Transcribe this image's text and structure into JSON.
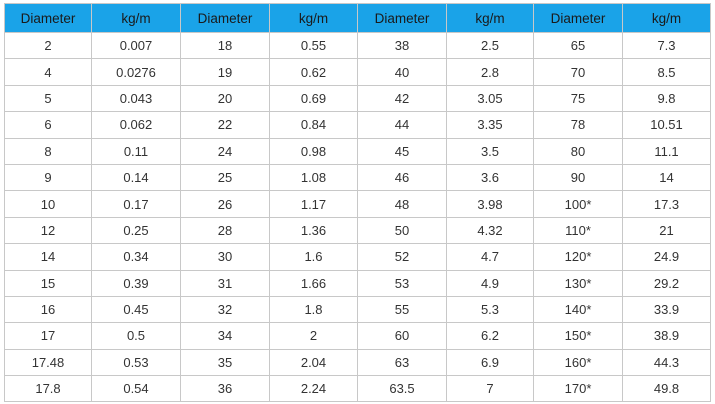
{
  "table": {
    "headers": [
      "Diameter",
      "kg/m",
      "Diameter",
      "kg/m",
      "Diameter",
      "kg/m",
      "Diameter",
      "kg/m"
    ],
    "rows": [
      [
        "2",
        "0.007",
        "18",
        "0.55",
        "38",
        "2.5",
        "65",
        "7.3"
      ],
      [
        "4",
        "0.0276",
        "19",
        "0.62",
        "40",
        "2.8",
        "70",
        "8.5"
      ],
      [
        "5",
        "0.043",
        "20",
        "0.69",
        "42",
        "3.05",
        "75",
        "9.8"
      ],
      [
        "6",
        "0.062",
        "22",
        "0.84",
        "44",
        "3.35",
        "78",
        "10.51"
      ],
      [
        "8",
        "0.11",
        "24",
        "0.98",
        "45",
        "3.5",
        "80",
        "11.1"
      ],
      [
        "9",
        "0.14",
        "25",
        "1.08",
        "46",
        "3.6",
        "90",
        "14"
      ],
      [
        "10",
        "0.17",
        "26",
        "1.17",
        "48",
        "3.98",
        "100*",
        "17.3"
      ],
      [
        "12",
        "0.25",
        "28",
        "1.36",
        "50",
        "4.32",
        "110*",
        "21"
      ],
      [
        "14",
        "0.34",
        "30",
        "1.6",
        "52",
        "4.7",
        "120*",
        "24.9"
      ],
      [
        "15",
        "0.39",
        "31",
        "1.66",
        "53",
        "4.9",
        "130*",
        "29.2"
      ],
      [
        "16",
        "0.45",
        "32",
        "1.8",
        "55",
        "5.3",
        "140*",
        "33.9"
      ],
      [
        "17",
        "0.5",
        "34",
        "2",
        "60",
        "6.2",
        "150*",
        "38.9"
      ],
      [
        "17.48",
        "0.53",
        "35",
        "2.04",
        "63",
        "6.9",
        "160*",
        "44.3"
      ],
      [
        "17.8",
        "0.54",
        "36",
        "2.24",
        "63.5",
        "7",
        "170*",
        "49.8"
      ]
    ]
  },
  "colors": {
    "header_bg": "#1aa3e8",
    "border": "#c8c8c8",
    "text": "#333333"
  }
}
